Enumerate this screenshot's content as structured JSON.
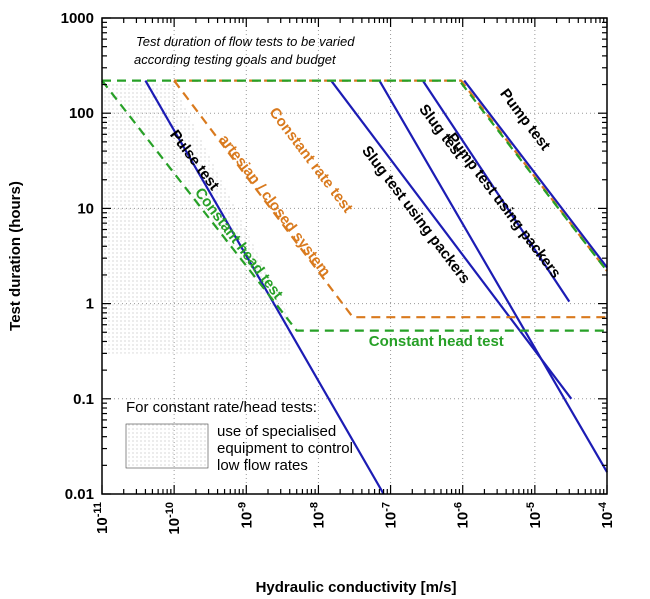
{
  "chart_data": {
    "type": "line",
    "xlabel": "Hydraulic conductivity [m/s]",
    "ylabel": "Test duration (hours)",
    "x_scale": "log",
    "y_scale": "log",
    "xlim": [
      1e-11,
      0.0001
    ],
    "ylim": [
      0.01,
      1000
    ],
    "x_ticks": [
      {
        "value": 1e-11,
        "base": "10",
        "exp": "-11"
      },
      {
        "value": 1e-10,
        "base": "10",
        "exp": "-10"
      },
      {
        "value": 1e-09,
        "base": "10",
        "exp": "-9"
      },
      {
        "value": 1e-08,
        "base": "10",
        "exp": "-8"
      },
      {
        "value": 1e-07,
        "base": "10",
        "exp": "-7"
      },
      {
        "value": 1e-06,
        "base": "10",
        "exp": "-6"
      },
      {
        "value": 1e-05,
        "base": "10",
        "exp": "-5"
      },
      {
        "value": 0.0001,
        "base": "10",
        "exp": "-4"
      }
    ],
    "y_ticks": [
      {
        "value": 0.01,
        "label": "0.01"
      },
      {
        "value": 0.1,
        "label": "0.1"
      },
      {
        "value": 1,
        "label": "1"
      },
      {
        "value": 10,
        "label": "10"
      },
      {
        "value": 100,
        "label": "100"
      },
      {
        "value": 1000,
        "label": "1000"
      }
    ],
    "grid": "dotted",
    "colors": {
      "blue": "#1c1cb4",
      "orange": "#d97a1e",
      "green": "#27a027",
      "grid": "#9a9a9a"
    },
    "series": [
      {
        "name": "Pulse test",
        "style": "solid",
        "color": "blue",
        "points": [
          [
            4e-11,
            220
          ],
          [
            8e-08,
            0.01
          ]
        ]
      },
      {
        "name": "Slug test using packers",
        "style": "solid",
        "color": "blue",
        "points": [
          [
            1.5e-08,
            220
          ],
          [
            3.2e-05,
            0.1
          ]
        ]
      },
      {
        "name": "Slug test",
        "style": "solid",
        "color": "blue",
        "points": [
          [
            7e-08,
            220
          ],
          [
            0.0001,
            0.017
          ]
        ]
      },
      {
        "name": "Pump test using packers",
        "style": "solid",
        "color": "blue",
        "points": [
          [
            2.8e-07,
            220
          ],
          [
            3e-05,
            1.05
          ]
        ]
      },
      {
        "name": "Pump test",
        "style": "solid",
        "color": "blue",
        "points": [
          [
            1.05e-06,
            220
          ],
          [
            0.0001,
            2.4
          ]
        ]
      },
      {
        "name": "Constant rate test artesian / closed system",
        "style": "dashed",
        "color": "orange",
        "points": [
          [
            1e-10,
            220
          ],
          [
            3e-08,
            0.72
          ],
          [
            0.0001,
            0.72
          ]
        ]
      },
      {
        "name": "Constant rate test",
        "style": "dashed",
        "color": "orange",
        "points": [
          [
            1e-10,
            220
          ],
          [
            9.5e-07,
            220
          ],
          [
            0.0001,
            2.2
          ]
        ]
      },
      {
        "name": "Constant head test",
        "style": "dashed",
        "color": "green",
        "points": [
          [
            1e-11,
            220
          ],
          [
            5e-09,
            0.52
          ],
          [
            0.0001,
            0.52
          ]
        ]
      },
      {
        "name": "Constant head test (upper)",
        "style": "dashed",
        "color": "green",
        "points": [
          [
            1e-11,
            220
          ],
          [
            9e-07,
            220
          ],
          [
            0.0001,
            2.2
          ]
        ]
      }
    ],
    "labels": [
      {
        "text": "Pulse test",
        "color": "black",
        "x": 1.7e-10,
        "y": 30
      },
      {
        "text": "Slug test using packers",
        "color": "black",
        "x": 2e-07,
        "y": 8
      },
      {
        "text": "Slug test",
        "color": "black",
        "x": 4.5e-07,
        "y": 60
      },
      {
        "text": "Pump test using packers",
        "color": "black",
        "x": 3.3e-06,
        "y": 10
      },
      {
        "text": "Pump test",
        "color": "black",
        "x": 6.5e-06,
        "y": 80
      },
      {
        "text": "Constant rate test",
        "color": "orange",
        "x": 7e-09,
        "y": 30
      },
      {
        "text": "artesian / closed system",
        "color": "orange",
        "x": 2.2e-09,
        "y": 10
      },
      {
        "text": "Constant head test",
        "color": "green",
        "x": 7e-10,
        "y": 4
      },
      {
        "text": "Constant head test",
        "color": "green",
        "x": 4.3e-07,
        "y": 0.36
      }
    ],
    "annotations": [
      "Test duration of flow tests to be varied",
      "according testing goals and budget"
    ],
    "legend": {
      "title": "For constant rate/head tests:",
      "lines": [
        "use of specialised",
        "equipment to control",
        "low flow rates"
      ],
      "placement": "bottom-left"
    },
    "shaded_regions": [
      {
        "polygon": [
          [
            1e-11,
            200
          ],
          [
            1e-10,
            200
          ],
          [
            4e-09,
            0.7
          ],
          [
            4e-09,
            0.3
          ],
          [
            1e-11,
            0.3
          ]
        ]
      }
    ]
  }
}
